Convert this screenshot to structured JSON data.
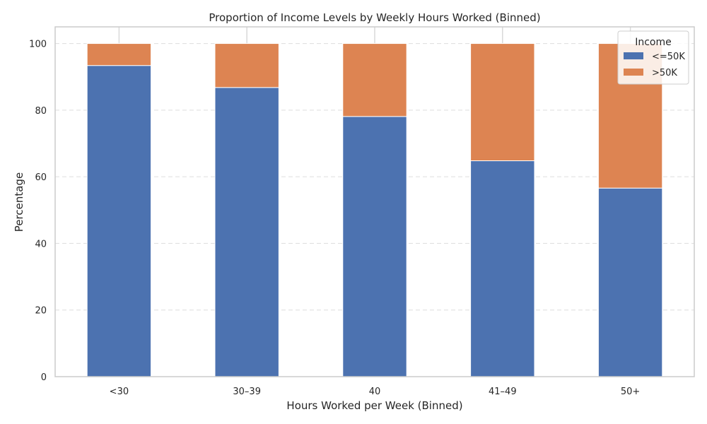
{
  "chart_data": {
    "type": "bar",
    "stacked": true,
    "title": "Proportion of Income Levels by Weekly Hours Worked (Binned)",
    "xlabel": "Hours Worked per Week (Binned)",
    "ylabel": "Percentage",
    "categories": [
      "<30",
      "30–39",
      "40",
      "41–49",
      "50+"
    ],
    "series": [
      {
        "name": "<=50K",
        "color": "#4c72b0",
        "values": [
          93.4,
          86.8,
          78.1,
          64.8,
          56.6
        ]
      },
      {
        "name": ">50K",
        "color": "#dd8452",
        "values": [
          6.6,
          13.2,
          21.9,
          35.2,
          43.4
        ]
      }
    ],
    "ylim": [
      0,
      105
    ],
    "yticks": [
      0,
      20,
      40,
      60,
      80,
      100
    ],
    "grid": true,
    "legend": {
      "title": "Income",
      "placement": "top-right"
    }
  }
}
